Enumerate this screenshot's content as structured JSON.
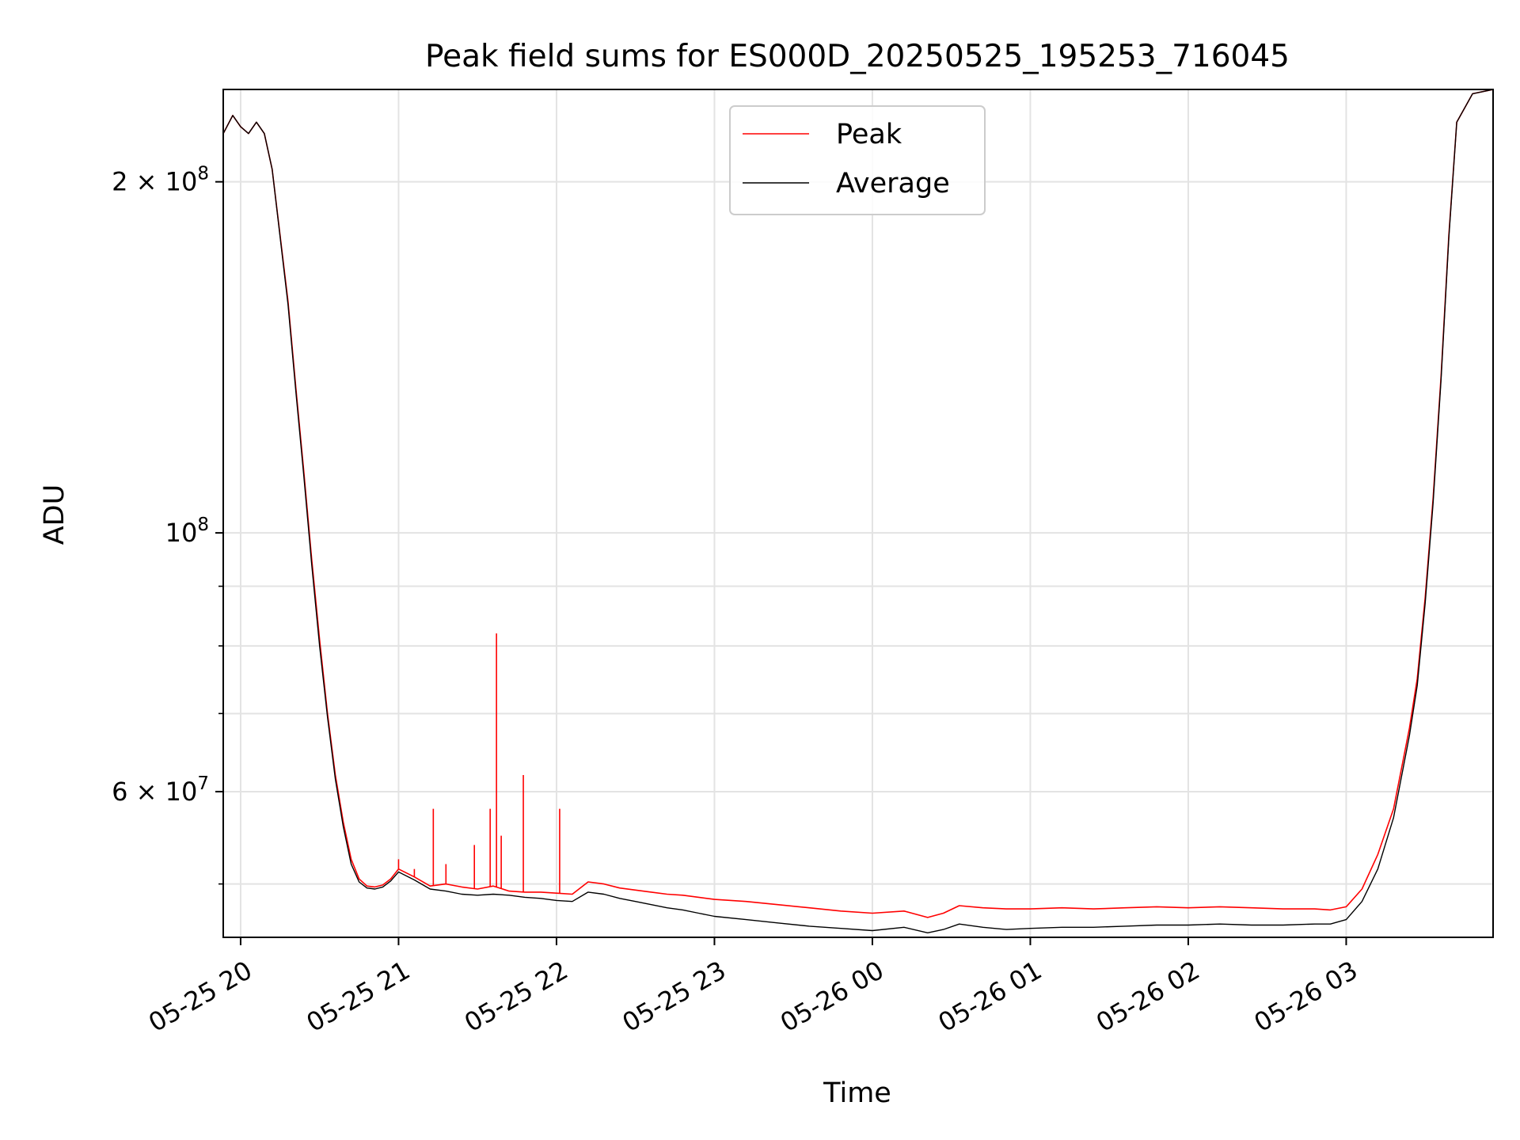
{
  "chart_data": {
    "type": "line",
    "title": "Peak field sums for ES000D_20250525_195253_716045",
    "xlabel": "Time",
    "ylabel": "ADU",
    "yscale": "log",
    "ylim": [
      45000000,
      240000000
    ],
    "xlim": [
      -0.11,
      7.93
    ],
    "x_unit": "hours since 05-25 20:00",
    "grid": true,
    "legend_position": "top-center",
    "x_ticks": [
      {
        "value": 0,
        "label": "05-25 20"
      },
      {
        "value": 1,
        "label": "05-25 21"
      },
      {
        "value": 2,
        "label": "05-25 22"
      },
      {
        "value": 3,
        "label": "05-25 23"
      },
      {
        "value": 4,
        "label": "05-26 00"
      },
      {
        "value": 5,
        "label": "05-26 01"
      },
      {
        "value": 6,
        "label": "05-26 02"
      },
      {
        "value": 7,
        "label": "05-26 03"
      }
    ],
    "y_ticks_labeled": [
      {
        "value": 60000000,
        "base": "6",
        "exp": "7",
        "times": true
      },
      {
        "value": 100000000,
        "base": "10",
        "exp": "8",
        "times": false
      },
      {
        "value": 200000000,
        "base": "2",
        "exp": "8",
        "times": true
      }
    ],
    "y_minor_ticks": [
      50000000,
      70000000,
      80000000,
      90000000
    ],
    "series": [
      {
        "name": "Peak",
        "color": "#ff0000",
        "x": [
          -0.11,
          -0.05,
          0.0,
          0.05,
          0.1,
          0.15,
          0.2,
          0.3,
          0.35,
          0.4,
          0.45,
          0.5,
          0.55,
          0.6,
          0.65,
          0.7,
          0.75,
          0.8,
          0.85,
          0.9,
          0.95,
          1.0,
          1.1,
          1.2,
          1.3,
          1.4,
          1.5,
          1.6,
          1.7,
          1.8,
          1.9,
          2.0,
          2.1,
          2.2,
          2.3,
          2.4,
          2.5,
          2.6,
          2.7,
          2.8,
          2.9,
          3.0,
          3.2,
          3.4,
          3.6,
          3.8,
          4.0,
          4.2,
          4.35,
          4.45,
          4.55,
          4.7,
          4.85,
          5.0,
          5.2,
          5.4,
          5.6,
          5.8,
          6.0,
          6.2,
          6.4,
          6.6,
          6.8,
          6.9,
          7.0,
          7.1,
          7.2,
          7.3,
          7.4,
          7.45,
          7.5,
          7.55,
          7.6,
          7.65,
          7.7,
          7.8,
          7.93
        ],
        "values": [
          220000000,
          228000000,
          223000000,
          220000000,
          225000000,
          220000000,
          205000000,
          158000000,
          133000000,
          113000000,
          95000000,
          81000000,
          70000000,
          62000000,
          56500000,
          52500000,
          50500000,
          49800000,
          49700000,
          49900000,
          50500000,
          51500000,
          50700000,
          49800000,
          50000000,
          49700000,
          49500000,
          49800000,
          49300000,
          49200000,
          49200000,
          49100000,
          49000000,
          50200000,
          50000000,
          49600000,
          49400000,
          49200000,
          49000000,
          48900000,
          48700000,
          48500000,
          48300000,
          48000000,
          47700000,
          47400000,
          47200000,
          47400000,
          46800000,
          47200000,
          47900000,
          47700000,
          47600000,
          47600000,
          47700000,
          47600000,
          47700000,
          47800000,
          47700000,
          47800000,
          47700000,
          47600000,
          47600000,
          47500000,
          47800000,
          49500000,
          53000000,
          58000000,
          68000000,
          75000000,
          88000000,
          107000000,
          136000000,
          180000000,
          225000000,
          238000000,
          240000000
        ]
      },
      {
        "name": "Average",
        "color": "#000000",
        "x": [
          -0.11,
          -0.05,
          0.0,
          0.05,
          0.1,
          0.15,
          0.2,
          0.3,
          0.35,
          0.4,
          0.45,
          0.5,
          0.55,
          0.6,
          0.65,
          0.7,
          0.75,
          0.8,
          0.85,
          0.9,
          0.95,
          1.0,
          1.1,
          1.2,
          1.3,
          1.4,
          1.5,
          1.6,
          1.7,
          1.8,
          1.9,
          2.0,
          2.1,
          2.2,
          2.3,
          2.4,
          2.5,
          2.6,
          2.7,
          2.8,
          2.9,
          3.0,
          3.2,
          3.4,
          3.6,
          3.8,
          4.0,
          4.2,
          4.35,
          4.45,
          4.55,
          4.7,
          4.85,
          5.0,
          5.2,
          5.4,
          5.6,
          5.8,
          6.0,
          6.2,
          6.4,
          6.6,
          6.8,
          6.9,
          7.0,
          7.1,
          7.2,
          7.3,
          7.4,
          7.45,
          7.5,
          7.55,
          7.6,
          7.65,
          7.7,
          7.8,
          7.93
        ],
        "values": [
          220000000,
          228000000,
          223000000,
          220000000,
          225000000,
          220000000,
          205000000,
          157000000,
          132000000,
          112000000,
          94000000,
          80000000,
          69500000,
          61500000,
          56000000,
          52000000,
          50200000,
          49600000,
          49500000,
          49700000,
          50300000,
          51200000,
          50400000,
          49500000,
          49300000,
          49000000,
          48900000,
          49000000,
          48900000,
          48700000,
          48600000,
          48400000,
          48300000,
          49200000,
          49000000,
          48600000,
          48300000,
          48000000,
          47700000,
          47500000,
          47200000,
          46900000,
          46600000,
          46300000,
          46000000,
          45800000,
          45600000,
          45900000,
          45400000,
          45700000,
          46200000,
          45900000,
          45700000,
          45800000,
          45900000,
          45900000,
          46000000,
          46100000,
          46100000,
          46200000,
          46100000,
          46100000,
          46200000,
          46200000,
          46600000,
          48300000,
          51500000,
          57000000,
          67000000,
          74000000,
          87000000,
          106000000,
          135000000,
          179000000,
          225000000,
          238000000,
          240000000
        ]
      }
    ],
    "peak_spikes": [
      {
        "x": 1.22,
        "value": 58000000
      },
      {
        "x": 1.48,
        "value": 54000000
      },
      {
        "x": 1.58,
        "value": 58000000
      },
      {
        "x": 1.62,
        "value": 82000000
      },
      {
        "x": 1.65,
        "value": 55000000
      },
      {
        "x": 1.79,
        "value": 62000000
      },
      {
        "x": 2.02,
        "value": 58000000
      },
      {
        "x": 1.0,
        "value": 52500000
      },
      {
        "x": 1.3,
        "value": 52000000
      },
      {
        "x": 1.1,
        "value": 51500000
      }
    ]
  }
}
